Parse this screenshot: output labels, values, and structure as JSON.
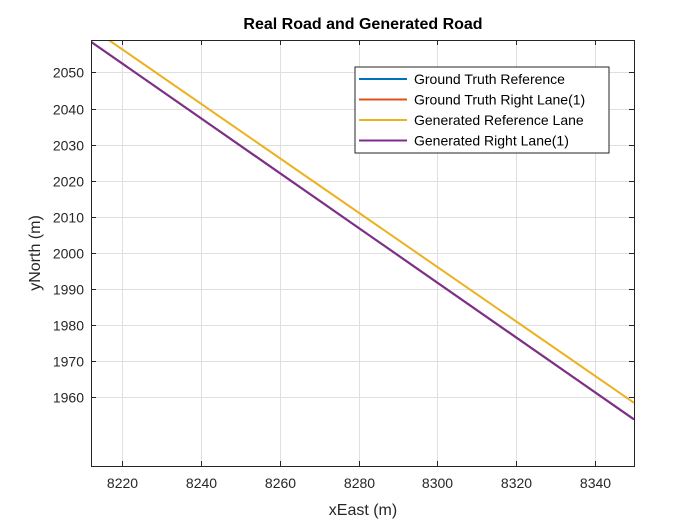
{
  "chart_data": {
    "type": "line",
    "title": "Real Road and Generated Road",
    "xlabel": "xEast (m)",
    "ylabel": "yNorth (m)",
    "xlim": [
      8212,
      8350
    ],
    "ylim": [
      1941,
      2059
    ],
    "xticks": [
      8220,
      8240,
      8260,
      8280,
      8300,
      8320,
      8340
    ],
    "yticks": [
      1960,
      1970,
      1980,
      1990,
      2000,
      2010,
      2020,
      2030,
      2040,
      2050
    ],
    "grid": true,
    "legend_position": "top-right",
    "series": [
      {
        "name": "Ground Truth Reference",
        "color": "#0072BD",
        "x": [
          8212,
          8350
        ],
        "y": [
          2058.5,
          1953.9
        ]
      },
      {
        "name": "Ground Truth Right Lane(1)",
        "color": "#D95319",
        "x": [
          8212,
          8350
        ],
        "y": [
          2058.5,
          1953.9
        ]
      },
      {
        "name": "Generated Reference Lane",
        "color": "#EDB120",
        "x": [
          8216.5,
          8350
        ],
        "y": [
          2059,
          1958.5
        ]
      },
      {
        "name": "Generated Right Lane(1)",
        "color": "#7E2F8E",
        "x": [
          8212,
          8350
        ],
        "y": [
          2058.5,
          1953.9
        ]
      }
    ]
  }
}
